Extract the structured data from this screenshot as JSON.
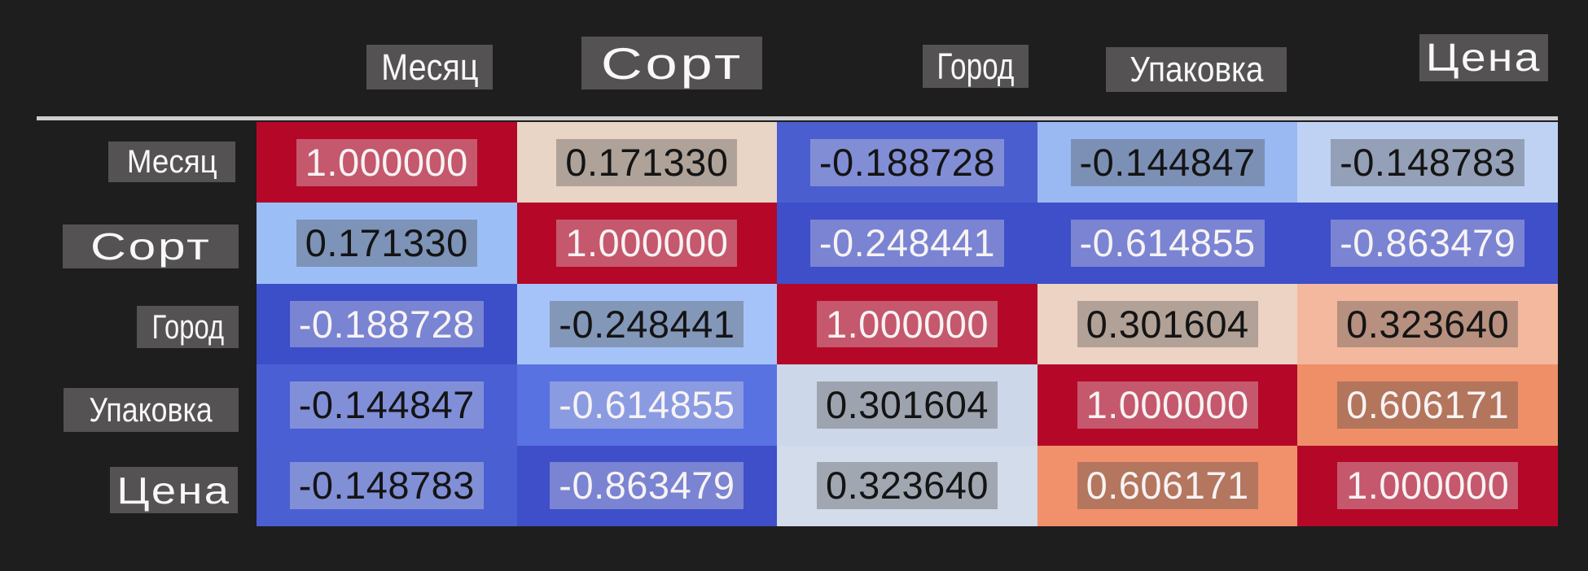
{
  "chart_data": {
    "type": "heatmap",
    "title": "",
    "rows": [
      "Месяц",
      "Сорт",
      "Город",
      "Упаковка",
      "Цена"
    ],
    "columns": [
      "Месяц",
      "Сорт",
      "Город",
      "Упаковка",
      "Цена"
    ],
    "values": [
      [
        1.0,
        0.17133,
        -0.188728,
        -0.144847,
        -0.148783
      ],
      [
        0.17133,
        1.0,
        -0.248441,
        -0.614855,
        -0.863479
      ],
      [
        -0.188728,
        -0.248441,
        1.0,
        0.301604,
        0.32364
      ],
      [
        -0.144847,
        -0.614855,
        0.301604,
        1.0,
        0.606171
      ],
      [
        -0.148783,
        -0.863479,
        0.32364,
        0.606171,
        1.0
      ]
    ],
    "colormap": "coolwarm",
    "gradient_axis": "per-column",
    "legend_position": "none",
    "grid": false
  },
  "matrix": {
    "headers": [
      "Месяц",
      "Сорт",
      "Город",
      "Упаковка",
      "Цена"
    ],
    "row_labels": [
      "Месяц",
      "Сорт",
      "Город",
      "Упаковка",
      "Цена"
    ],
    "cells": [
      [
        {
          "t": "1.000000",
          "bg": "#b50829",
          "fg": "#f7f3f4",
          "box": "L"
        },
        {
          "t": "0.171330",
          "bg": "#e9d5c6",
          "fg": "#141414",
          "box": "D"
        },
        {
          "t": "-0.188728",
          "bg": "#4a5ed0",
          "fg": "#141414",
          "box": "L"
        },
        {
          "t": "-0.144847",
          "bg": "#9ab9f3",
          "fg": "#141414",
          "box": "D"
        },
        {
          "t": "-0.148783",
          "bg": "#bfd2f4",
          "fg": "#141414",
          "box": "D"
        }
      ],
      [
        {
          "t": "0.171330",
          "bg": "#9cbef6",
          "fg": "#141414",
          "box": "D"
        },
        {
          "t": "1.000000",
          "bg": "#b50829",
          "fg": "#f7f3f4",
          "box": "L"
        },
        {
          "t": "-0.248441",
          "bg": "#3e4fc9",
          "fg": "#f7f3f4",
          "box": "L"
        },
        {
          "t": "-0.614855",
          "bg": "#3e4fc9",
          "fg": "#f7f3f4",
          "box": "L"
        },
        {
          "t": "-0.863479",
          "bg": "#3e4fc9",
          "fg": "#f7f3f4",
          "box": "L"
        }
      ],
      [
        {
          "t": "-0.188728",
          "bg": "#3d4ec9",
          "fg": "#f7f3f4",
          "box": "L"
        },
        {
          "t": "-0.248441",
          "bg": "#a5c3f8",
          "fg": "#141414",
          "box": "D"
        },
        {
          "t": "1.000000",
          "bg": "#b50829",
          "fg": "#f7f3f4",
          "box": "L"
        },
        {
          "t": "0.301604",
          "bg": "#ecd3c4",
          "fg": "#141414",
          "box": "D"
        },
        {
          "t": "0.323640",
          "bg": "#f4b89e",
          "fg": "#141414",
          "box": "D"
        }
      ],
      [
        {
          "t": "-0.144847",
          "bg": "#4a5fd4",
          "fg": "#141414",
          "box": "L"
        },
        {
          "t": "-0.614855",
          "bg": "#5872e2",
          "fg": "#f7f3f4",
          "box": "L"
        },
        {
          "t": "0.301604",
          "bg": "#ccd8ea",
          "fg": "#141414",
          "box": "D"
        },
        {
          "t": "1.000000",
          "bg": "#b50829",
          "fg": "#f7f3f4",
          "box": "L"
        },
        {
          "t": "0.606171",
          "bg": "#ee8f68",
          "fg": "#f7f3f4",
          "box": "D"
        }
      ],
      [
        {
          "t": "-0.148783",
          "bg": "#4a5fd2",
          "fg": "#141414",
          "box": "L"
        },
        {
          "t": "-0.863479",
          "bg": "#3e4fc9",
          "fg": "#f7f3f4",
          "box": "L"
        },
        {
          "t": "0.323640",
          "bg": "#d2dcea",
          "fg": "#141414",
          "box": "D"
        },
        {
          "t": "0.606171",
          "bg": "#f0916c",
          "fg": "#f7f3f4",
          "box": "D"
        },
        {
          "t": "1.000000",
          "bg": "#b50829",
          "fg": "#f7f3f4",
          "box": "L"
        }
      ]
    ]
  },
  "colors": {
    "background": "#1f1e1e",
    "divider": "#cecccc",
    "label_box": "#555254",
    "label_text": "#f8f8f8",
    "heatmap_min": "#3e4fc9",
    "heatmap_max": "#b50829",
    "highlight_light": "rgba(225,225,225,0.37)",
    "highlight_dark": "rgba(70,70,70,0.35)"
  }
}
